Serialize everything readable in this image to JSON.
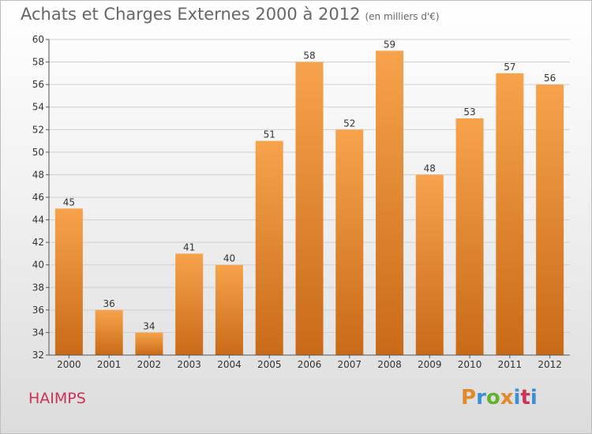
{
  "header": {
    "title": "Achats et Charges Externes 2000 à 2012",
    "subtitle": "(en milliers d'€)"
  },
  "footer": {
    "commune": "HAIMPS",
    "logo": {
      "p": "P",
      "r": "r",
      "o": "o",
      "x": "x",
      "i": "i",
      "t": "t",
      "i2": "i"
    }
  },
  "colors": {
    "bar_top": "#f7a34c",
    "bar_bottom": "#c96a17",
    "grid": "#cfcfcf"
  },
  "chart_data": {
    "type": "bar",
    "categories": [
      "2000",
      "2001",
      "2002",
      "2003",
      "2004",
      "2005",
      "2006",
      "2007",
      "2008",
      "2009",
      "2010",
      "2011",
      "2012"
    ],
    "values": [
      45,
      36,
      34,
      41,
      40,
      51,
      58,
      52,
      59,
      48,
      53,
      57,
      56
    ],
    "yticks": [
      32,
      34,
      36,
      38,
      40,
      42,
      44,
      46,
      48,
      50,
      52,
      54,
      56,
      58,
      60
    ],
    "ylim": [
      32,
      60
    ],
    "grid": true,
    "data_labels": true
  }
}
